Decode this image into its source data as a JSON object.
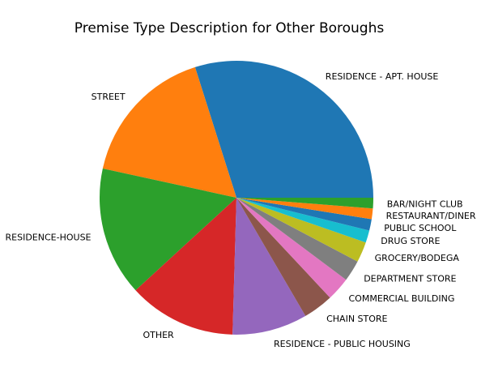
{
  "chart_data": {
    "type": "pie",
    "title": "Premise Type Description for Other Boroughs",
    "start_angle_deg": 0,
    "direction": "counterclockwise",
    "slices": [
      {
        "label": "RESIDENCE - APT. HOUSE",
        "value": 31.0,
        "color": "#1f77b4"
      },
      {
        "label": "STREET",
        "value": 17.3,
        "color": "#ff7f0e"
      },
      {
        "label": "RESIDENCE-HOUSE",
        "value": 15.8,
        "color": "#2ca02c"
      },
      {
        "label": "OTHER",
        "value": 13.2,
        "color": "#d62728"
      },
      {
        "label": "RESIDENCE - PUBLIC HOUSING",
        "value": 9.2,
        "color": "#9467bd"
      },
      {
        "label": "CHAIN STORE",
        "value": 3.7,
        "color": "#8c564b"
      },
      {
        "label": "COMMERCIAL BUILDING",
        "value": 2.9,
        "color": "#e377c2"
      },
      {
        "label": "DEPARTMENT STORE",
        "value": 2.6,
        "color": "#7f7f7f"
      },
      {
        "label": "GROCERY/BODEGA",
        "value": 2.5,
        "color": "#bcbd22"
      },
      {
        "label": "DRUG STORE",
        "value": 1.5,
        "color": "#17becf"
      },
      {
        "label": "PUBLIC SCHOOL",
        "value": 1.4,
        "color": "#1f77b4"
      },
      {
        "label": "RESTAURANT/DINER",
        "value": 1.3,
        "color": "#ff7f0e"
      },
      {
        "label": "BAR/NIGHT CLUB",
        "value": 1.3,
        "color": "#2ca02c"
      }
    ]
  }
}
